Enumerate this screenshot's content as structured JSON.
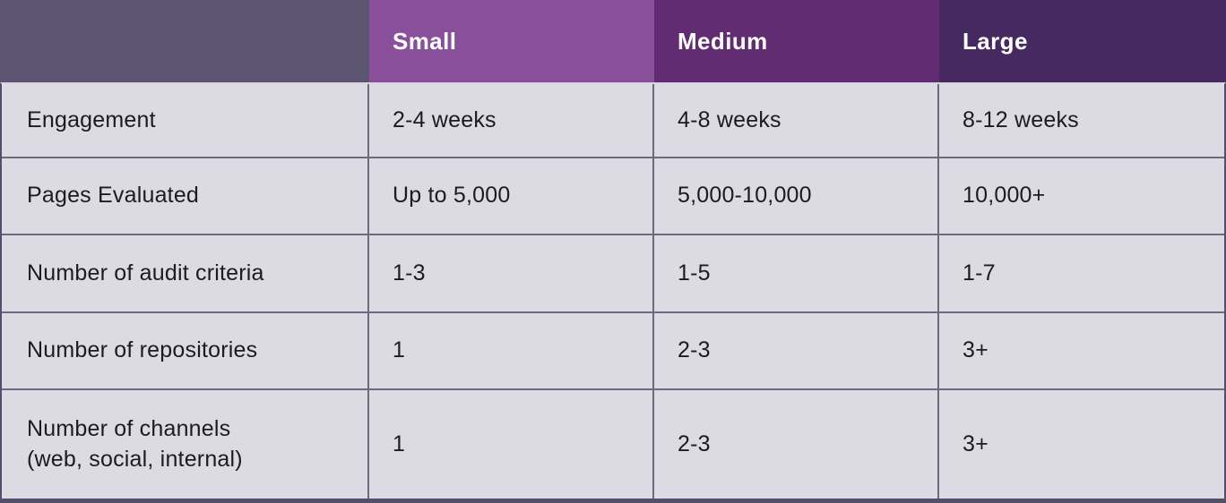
{
  "chart_data": {
    "type": "table",
    "title": "",
    "columns": [
      "",
      "Small",
      "Medium",
      "Large"
    ],
    "rows": [
      {
        "label": "Engagement",
        "values": [
          "2-4 weeks",
          "4-8 weeks",
          "8-12 weeks"
        ]
      },
      {
        "label": "Pages Evaluated",
        "values": [
          "Up to 5,000",
          "5,000-10,000",
          "10,000+"
        ]
      },
      {
        "label": "Number of audit criteria",
        "values": [
          "1-3",
          "1-5",
          "1-7"
        ]
      },
      {
        "label": "Number of repositories",
        "values": [
          "1",
          "2-3",
          "3+"
        ]
      },
      {
        "label": "Number of channels\n(web, social, internal)",
        "values": [
          "1",
          "2-3",
          "3+"
        ]
      }
    ]
  },
  "colors": {
    "header_cell_bgs": [
      "#5c5470",
      "#8a4f9b",
      "#622c73",
      "#462961"
    ],
    "header_text": "#ffffff",
    "body_cell_bg": "#dcdae3",
    "grid_line": "#6e6880",
    "outer_border": "#534e69",
    "header_divider": "#d8d6e0",
    "body_text": "#1c1b21"
  }
}
